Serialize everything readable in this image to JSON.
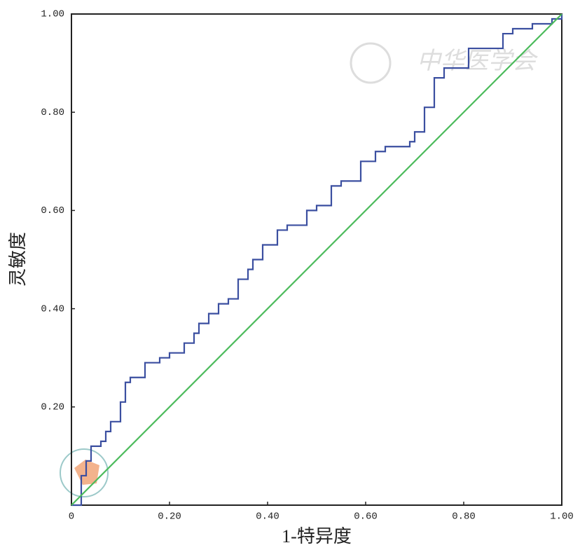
{
  "chart_data": {
    "type": "line",
    "xlabel": "1-特异度",
    "ylabel": "灵敏度",
    "watermark": "中华医学会",
    "xlim": [
      0,
      1
    ],
    "ylim": [
      0,
      1
    ],
    "xticks": [
      0,
      {
        "value": 0.2,
        "label": "0.20"
      },
      {
        "value": 0.4,
        "label": "0.40"
      },
      {
        "value": 0.6,
        "label": "0.60"
      },
      {
        "value": 0.8,
        "label": "0.80"
      },
      {
        "value": 1,
        "label": "1.00"
      }
    ],
    "yticks": [
      {
        "value": 0.2,
        "label": "0.20"
      },
      {
        "value": 0.4,
        "label": "0.40"
      },
      {
        "value": 0.6,
        "label": "0.60"
      },
      {
        "value": 0.8,
        "label": "0.80"
      },
      {
        "value": 1,
        "label": "1.00"
      }
    ],
    "series": [
      {
        "color": "#3b4fa0",
        "x": [
          0,
          0.02,
          0.02,
          0.03,
          0.03,
          0.04,
          0.04,
          0.06,
          0.06,
          0.07,
          0.07,
          0.08,
          0.08,
          0.1,
          0.1,
          0.11,
          0.11,
          0.12,
          0.12,
          0.15,
          0.15,
          0.18,
          0.18,
          0.2,
          0.2,
          0.23,
          0.23,
          0.25,
          0.25,
          0.26,
          0.26,
          0.28,
          0.28,
          0.3,
          0.3,
          0.32,
          0.32,
          0.34,
          0.34,
          0.36,
          0.36,
          0.37,
          0.37,
          0.39,
          0.39,
          0.42,
          0.42,
          0.44,
          0.44,
          0.48,
          0.48,
          0.5,
          0.5,
          0.53,
          0.53,
          0.55,
          0.55,
          0.59,
          0.59,
          0.62,
          0.62,
          0.64,
          0.64,
          0.69,
          0.69,
          0.7,
          0.7,
          0.72,
          0.72,
          0.74,
          0.74,
          0.76,
          0.76,
          0.81,
          0.81,
          0.88,
          0.88,
          0.9,
          0.9,
          0.94,
          0.94,
          0.98,
          0.98,
          1,
          1
        ],
        "values": [
          0,
          0,
          0.06,
          0.06,
          0.09,
          0.09,
          0.12,
          0.12,
          0.13,
          0.13,
          0.15,
          0.15,
          0.17,
          0.17,
          0.21,
          0.21,
          0.25,
          0.25,
          0.26,
          0.26,
          0.29,
          0.29,
          0.3,
          0.3,
          0.31,
          0.31,
          0.33,
          0.33,
          0.35,
          0.35,
          0.37,
          0.37,
          0.39,
          0.39,
          0.41,
          0.41,
          0.42,
          0.42,
          0.46,
          0.46,
          0.48,
          0.48,
          0.5,
          0.5,
          0.53,
          0.53,
          0.56,
          0.56,
          0.57,
          0.57,
          0.6,
          0.6,
          0.61,
          0.61,
          0.65,
          0.65,
          0.66,
          0.66,
          0.7,
          0.7,
          0.72,
          0.72,
          0.73,
          0.73,
          0.74,
          0.74,
          0.76,
          0.76,
          0.81,
          0.81,
          0.87,
          0.87,
          0.89,
          0.89,
          0.93,
          0.93,
          0.96,
          0.96,
          0.97,
          0.97,
          0.98,
          0.98,
          0.99,
          0.99,
          1
        ]
      },
      {
        "color": "#4cbb5c",
        "x": [
          0,
          1
        ],
        "values": [
          0,
          1
        ]
      }
    ]
  }
}
